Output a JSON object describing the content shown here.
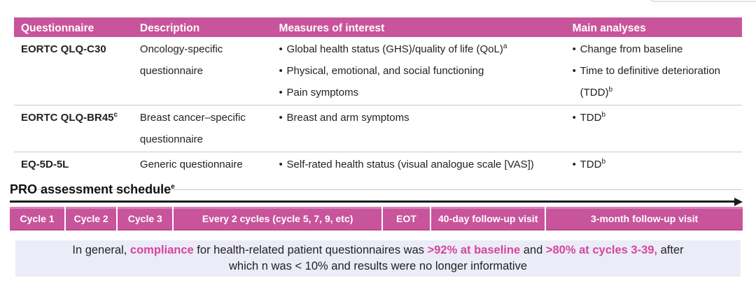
{
  "colors": {
    "accent_pink": "#c8549c",
    "text_pink": "#d5469d",
    "note_bg": "#ececf8",
    "divider_gray": "#c9c9c9",
    "arrow_black": "#1a1a1a"
  },
  "table": {
    "headers": [
      "Questionnaire",
      "Description",
      "Measures of interest",
      "Main analyses"
    ],
    "rows": [
      {
        "questionnaire": {
          "text": "EORTC QLQ-C30",
          "sup": ""
        },
        "description": "Oncology-specific questionnaire",
        "measures": [
          {
            "text": "Global health status (GHS)/quality of life (QoL)",
            "sup": "a"
          },
          {
            "text": "Physical, emotional, and social functioning",
            "sup": ""
          },
          {
            "text": "Pain symptoms",
            "sup": ""
          }
        ],
        "analyses": [
          {
            "text": "Change from baseline",
            "sup": ""
          },
          {
            "text": "Time to definitive deterioration (TDD)",
            "sup": "b"
          }
        ]
      },
      {
        "questionnaire": {
          "text": "EORTC QLQ-BR45",
          "sup": "c"
        },
        "description": "Breast cancer–specific questionnaire",
        "measures": [
          {
            "text": "Breast and arm symptoms",
            "sup": ""
          }
        ],
        "analyses": [
          {
            "text": "TDD",
            "sup": "b"
          }
        ]
      },
      {
        "questionnaire": {
          "text": "EQ-5D-5L",
          "sup": ""
        },
        "description": "Generic questionnaire",
        "measures": [
          {
            "text": "Self-rated health status (visual analogue scale [VAS])",
            "sup": ""
          }
        ],
        "analyses": [
          {
            "text": "TDD",
            "sup": "b"
          }
        ]
      }
    ]
  },
  "schedule": {
    "title": "PRO assessment schedule",
    "title_sup": "e",
    "segments": [
      {
        "label": "Cycle 1"
      },
      {
        "label": "Cycle 2"
      },
      {
        "label": "Cycle 3"
      },
      {
        "label": "Every 2 cycles (cycle 5, 7, 9, etc)"
      },
      {
        "label": "EOT"
      },
      {
        "label": "40-day follow-up visit"
      },
      {
        "label": "3-month follow-up visit"
      }
    ]
  },
  "note": {
    "parts": [
      {
        "text": "In general, "
      },
      {
        "text": "compliance"
      },
      {
        "text": " for health-related patient questionnaires was "
      },
      {
        "text": ">92% at baseline"
      },
      {
        "text": " and "
      },
      {
        "text": ">80% at cycles 3-39,"
      },
      {
        "text": " after "
      },
      {
        "text": "which n was < 10% and results were no longer informative"
      }
    ]
  }
}
